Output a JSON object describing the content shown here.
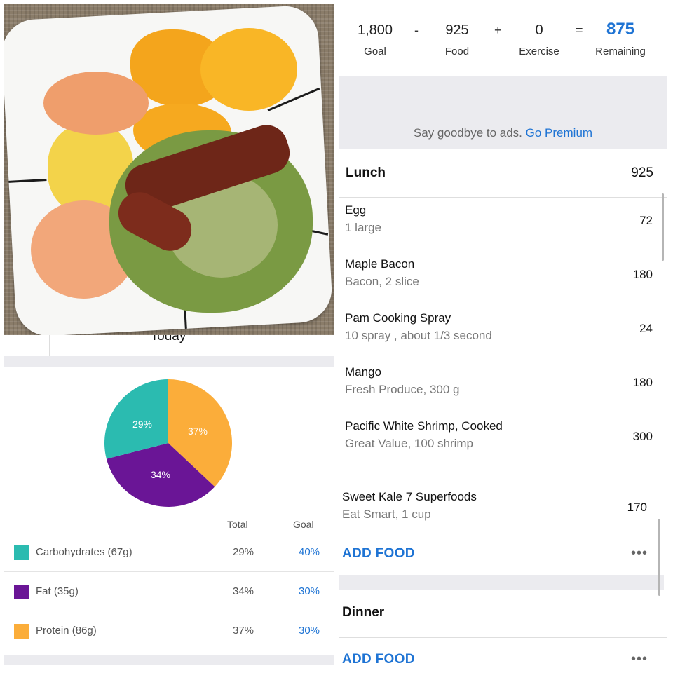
{
  "summary": {
    "goal_value": "1,800",
    "goal_label": "Goal",
    "minus": "-",
    "food_value": "925",
    "food_label": "Food",
    "plus": "+",
    "exercise_value": "0",
    "exercise_label": "Exercise",
    "equals": "=",
    "remaining_value": "875",
    "remaining_label": "Remaining"
  },
  "ad": {
    "text": "Say goodbye to ads.",
    "link": "Go Premium"
  },
  "lunch": {
    "title": "Lunch",
    "calories": "925",
    "items": [
      {
        "name": "Egg",
        "desc": "1 large",
        "cal": "72"
      },
      {
        "name": "Maple Bacon",
        "desc": "Bacon, 2 slice",
        "cal": "180"
      },
      {
        "name": "Pam Cooking Spray",
        "desc": "10 spray , about 1/3 second",
        "cal": "24"
      },
      {
        "name": "Mango",
        "desc": "Fresh Produce, 300 g",
        "cal": "180"
      },
      {
        "name": "Pacific White Shrimp, Cooked",
        "desc": "Great Value, 100 shrimp",
        "cal": "300"
      },
      {
        "name": "Sweet Kale 7 Superfoods",
        "desc": "Eat Smart, 1 cup",
        "cal": "170"
      }
    ],
    "add_food": "ADD FOOD",
    "more": "•••"
  },
  "dinner": {
    "title": "Dinner",
    "add_food": "ADD FOOD",
    "more": "•••"
  },
  "left": {
    "caption": "Today",
    "pie_labels": {
      "carbs": "29%",
      "fat": "34%",
      "protein": "37%"
    },
    "header_total": "Total",
    "header_goal": "Goal",
    "macros": [
      {
        "name": "Carbohydrates (67g)",
        "total": "29%",
        "goal": "40%",
        "color": "#2bbbb0"
      },
      {
        "name": "Fat (35g)",
        "total": "34%",
        "goal": "30%",
        "color": "#6a1596"
      },
      {
        "name": "Protein (86g)",
        "total": "37%",
        "goal": "30%",
        "color": "#fbad3a"
      }
    ]
  },
  "chart_data": {
    "type": "pie",
    "labels": [
      "Carbohydrates",
      "Fat",
      "Protein"
    ],
    "values": [
      29,
      34,
      37
    ],
    "colors": [
      "#2bbbb0",
      "#6a1596",
      "#fbad3a"
    ]
  }
}
